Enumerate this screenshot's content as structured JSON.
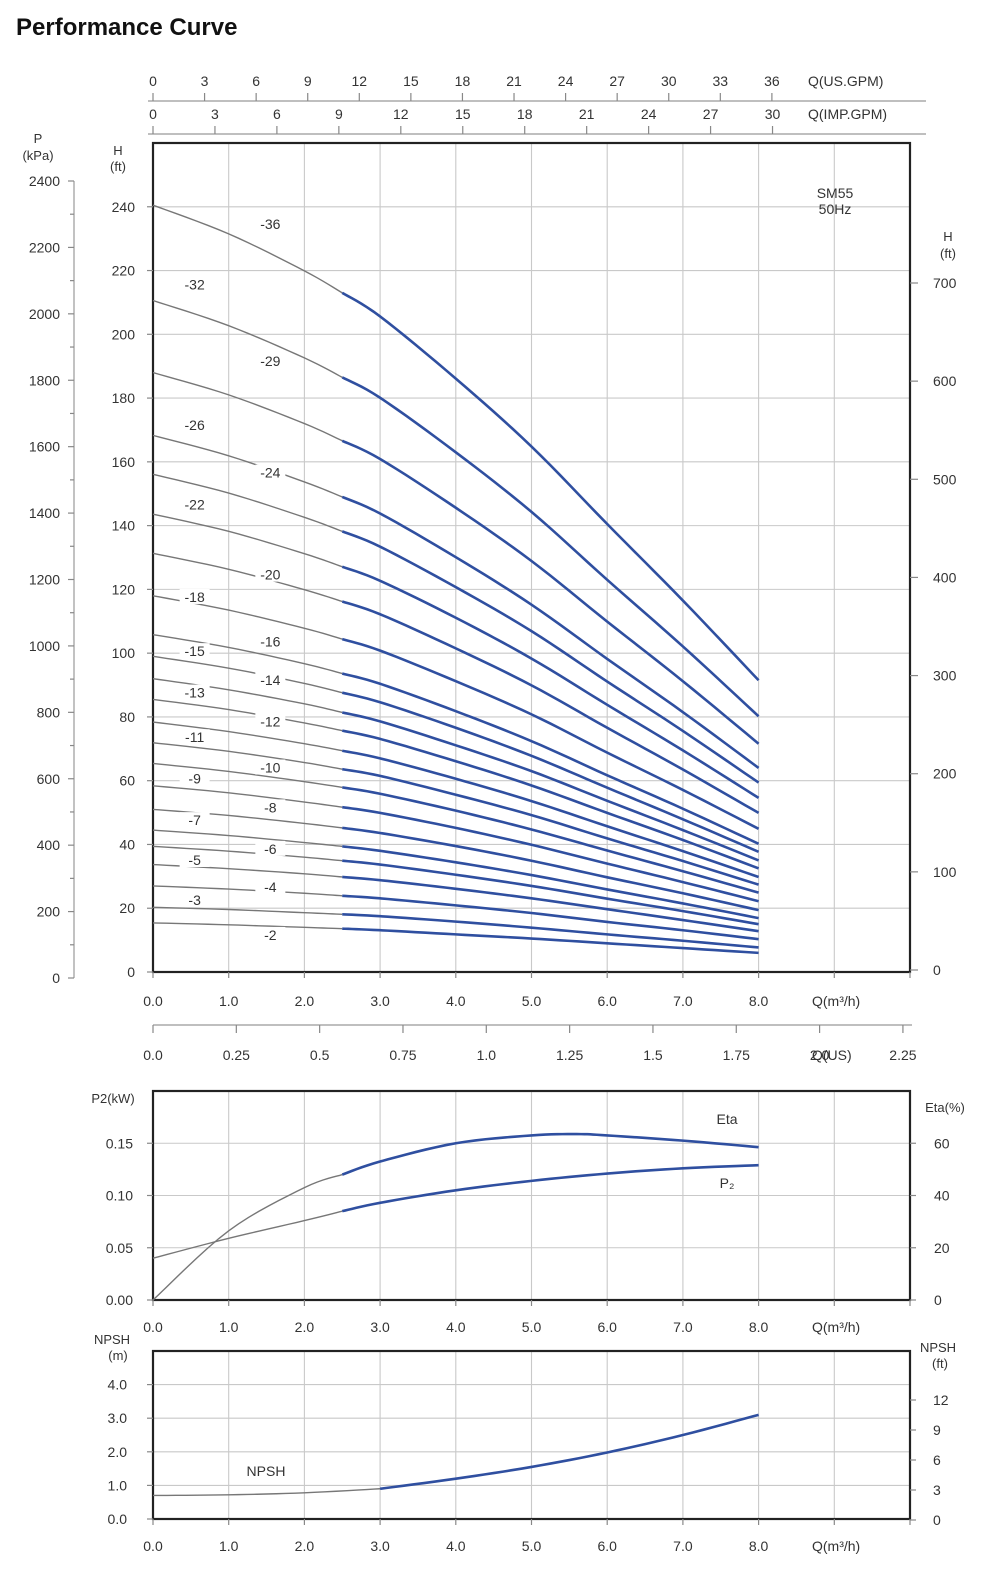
{
  "page_title": "Performance Curve",
  "chart_data": [
    {
      "type": "line",
      "name": "head",
      "annotation": [
        "SM55",
        "50Hz"
      ],
      "x_label": "Q(m³/h)",
      "x_ticks": [
        "0.0",
        "1.0",
        "2.0",
        "3.0",
        "4.0",
        "5.0",
        "6.0",
        "7.0",
        "8.0"
      ],
      "xlim": [
        0,
        10
      ],
      "ylim": [
        0,
        260
      ],
      "y_label_left_unit": [
        "H",
        "(ft)"
      ],
      "y_ticks_left": [
        "0",
        "20",
        "40",
        "60",
        "80",
        "100",
        "120",
        "140",
        "160",
        "180",
        "200",
        "220",
        "240"
      ],
      "pressure_label": [
        "P",
        "(kPa)"
      ],
      "pressure_ticks": [
        "0",
        "200",
        "400",
        "600",
        "800",
        "1000",
        "1200",
        "1400",
        "1600",
        "1800",
        "2000",
        "2200",
        "2400"
      ],
      "right_label": [
        "H",
        "(ft)"
      ],
      "right_ticks": [
        "0",
        "100",
        "200",
        "300",
        "400",
        "500",
        "600",
        "700"
      ],
      "top_axis_us": {
        "label": "Q(US.GPM)",
        "ticks": [
          "0",
          "3",
          "6",
          "9",
          "12",
          "15",
          "18",
          "21",
          "24",
          "27",
          "30",
          "33",
          "36"
        ]
      },
      "top_axis_imp": {
        "label": "Q(IMP.GPM)",
        "ticks": [
          "0",
          "3",
          "6",
          "9",
          "12",
          "15",
          "18",
          "21",
          "24",
          "27",
          "30"
        ]
      },
      "bottom_axis_us": {
        "label": "Q(US)",
        "ticks": [
          "0.0",
          "0.25",
          "0.5",
          "0.75",
          "1.0",
          "1.25",
          "1.5",
          "1.75",
          "2.0",
          "2.25"
        ]
      },
      "series_x": [
        0,
        1,
        2,
        2.5,
        3,
        4,
        5,
        6,
        7,
        8
      ],
      "series": [
        {
          "name": "-2",
          "values": [
            15.4,
            14.8,
            14.0,
            13.6,
            13.1,
            11.8,
            10.5,
            9.0,
            7.5,
            6.0
          ]
        },
        {
          "name": "-3",
          "values": [
            20.3,
            19.6,
            18.6,
            18.1,
            17.5,
            15.8,
            13.9,
            11.8,
            9.8,
            7.7
          ]
        },
        {
          "name": "-4",
          "values": [
            27.0,
            26.0,
            24.7,
            23.9,
            23.1,
            20.9,
            18.5,
            15.7,
            13.1,
            10.3
          ]
        },
        {
          "name": "-5",
          "values": [
            33.7,
            32.4,
            30.8,
            29.8,
            28.8,
            26.1,
            23.1,
            19.7,
            16.3,
            12.8
          ]
        },
        {
          "name": "-6",
          "values": [
            39.4,
            37.9,
            36.0,
            34.9,
            33.7,
            30.5,
            27.0,
            23.0,
            19.1,
            15.0
          ]
        },
        {
          "name": "-7",
          "values": [
            44.5,
            42.8,
            40.6,
            39.4,
            38.0,
            34.4,
            30.4,
            25.9,
            21.5,
            16.9
          ]
        },
        {
          "name": "-8",
          "values": [
            51.0,
            49.1,
            46.6,
            45.2,
            43.6,
            39.5,
            34.9,
            29.7,
            24.7,
            19.4
          ]
        },
        {
          "name": "-9",
          "values": [
            58.4,
            56.2,
            53.3,
            51.7,
            49.9,
            45.2,
            39.9,
            34.0,
            28.2,
            22.2
          ]
        },
        {
          "name": "-10",
          "values": [
            65.4,
            62.9,
            59.7,
            57.9,
            55.9,
            50.6,
            44.7,
            38.1,
            31.6,
            24.9
          ]
        },
        {
          "name": "-11",
          "values": [
            71.9,
            69.2,
            65.7,
            63.6,
            61.5,
            55.6,
            49.2,
            41.9,
            34.8,
            27.4
          ]
        },
        {
          "name": "-12",
          "values": [
            78.4,
            75.4,
            71.6,
            69.4,
            67.0,
            60.6,
            53.6,
            45.7,
            37.9,
            29.8
          ]
        },
        {
          "name": "-13",
          "values": [
            85.5,
            82.3,
            78.1,
            75.7,
            73.1,
            66.1,
            58.5,
            49.9,
            41.4,
            32.5
          ]
        },
        {
          "name": "-14",
          "values": [
            92.0,
            88.5,
            84.1,
            81.4,
            78.6,
            71.1,
            63.0,
            53.7,
            44.5,
            35.0
          ]
        },
        {
          "name": "-15",
          "values": [
            99.0,
            95.3,
            90.5,
            87.6,
            84.6,
            76.6,
            67.8,
            57.8,
            47.9,
            37.7
          ]
        },
        {
          "name": "-16",
          "values": [
            105.8,
            101.8,
            96.7,
            93.6,
            90.4,
            81.8,
            72.4,
            61.7,
            51.2,
            40.2
          ]
        },
        {
          "name": "-18",
          "values": [
            118.0,
            113.5,
            107.8,
            104.4,
            100.8,
            91.2,
            80.8,
            68.8,
            57.1,
            44.9
          ]
        },
        {
          "name": "-20",
          "values": [
            131.3,
            126.3,
            119.9,
            116.2,
            112.2,
            101.5,
            89.9,
            76.6,
            63.5,
            49.9
          ]
        },
        {
          "name": "-22",
          "values": [
            143.6,
            138.2,
            131.2,
            127.1,
            122.7,
            111.1,
            98.3,
            83.8,
            69.5,
            54.6
          ]
        },
        {
          "name": "-24",
          "values": [
            156.1,
            150.2,
            142.6,
            138.2,
            133.4,
            120.7,
            106.9,
            91.1,
            75.6,
            59.4
          ]
        },
        {
          "name": "-26",
          "values": [
            168.3,
            161.9,
            153.7,
            149.0,
            143.8,
            130.1,
            115.2,
            98.2,
            81.5,
            64.0
          ]
        },
        {
          "name": "-29",
          "values": [
            188.0,
            181.0,
            172.0,
            166.6,
            160.9,
            145.6,
            128.9,
            109.9,
            91.2,
            71.6
          ]
        },
        {
          "name": "-32",
          "values": [
            210.6,
            202.7,
            192.6,
            186.5,
            180.1,
            163.0,
            144.3,
            123.0,
            102.1,
            80.2
          ]
        },
        {
          "name": "-36",
          "values": [
            240.5,
            231.5,
            219.9,
            213.0,
            205.6,
            186.1,
            164.8,
            140.5,
            116.5,
            91.5
          ]
        }
      ],
      "curve_labels": [
        {
          "name": "-36",
          "at": [
            1.55,
            234
          ]
        },
        {
          "name": "-32",
          "at": [
            0.55,
            215
          ]
        },
        {
          "name": "-29",
          "at": [
            1.55,
            191
          ]
        },
        {
          "name": "-26",
          "at": [
            0.55,
            171
          ]
        },
        {
          "name": "-24",
          "at": [
            1.55,
            156
          ]
        },
        {
          "name": "-22",
          "at": [
            0.55,
            146
          ]
        },
        {
          "name": "-20",
          "at": [
            1.55,
            124
          ]
        },
        {
          "name": "-18",
          "at": [
            0.55,
            117
          ]
        },
        {
          "name": "-16",
          "at": [
            1.55,
            103
          ]
        },
        {
          "name": "-15",
          "at": [
            0.55,
            100
          ]
        },
        {
          "name": "-14",
          "at": [
            1.55,
            91
          ]
        },
        {
          "name": "-13",
          "at": [
            0.55,
            87
          ]
        },
        {
          "name": "-12",
          "at": [
            1.55,
            78
          ]
        },
        {
          "name": "-11",
          "at": [
            0.55,
            73
          ]
        },
        {
          "name": "-10",
          "at": [
            1.55,
            63.5
          ]
        },
        {
          "name": "-9",
          "at": [
            0.55,
            60
          ]
        },
        {
          "name": "-8",
          "at": [
            1.55,
            51
          ]
        },
        {
          "name": "-7",
          "at": [
            0.55,
            47
          ]
        },
        {
          "name": "-6",
          "at": [
            1.55,
            38
          ]
        },
        {
          "name": "-5",
          "at": [
            0.55,
            34.5
          ]
        },
        {
          "name": "-4",
          "at": [
            1.55,
            26
          ]
        },
        {
          "name": "-3",
          "at": [
            0.55,
            22
          ]
        },
        {
          "name": "-2",
          "at": [
            1.55,
            11
          ]
        }
      ]
    },
    {
      "type": "line",
      "name": "power-efficiency",
      "x_label": "Q(m³/h)",
      "x_ticks": [
        "0.0",
        "1.0",
        "2.0",
        "3.0",
        "4.0",
        "5.0",
        "6.0",
        "7.0",
        "8.0"
      ],
      "xlim": [
        0,
        10
      ],
      "y_label_left": "P2(kW)",
      "y_ticks_left": [
        "0.00",
        "0.05",
        "0.10",
        "0.15"
      ],
      "ylim_left": [
        0,
        0.2
      ],
      "y_label_right": "Eta(%)",
      "y_ticks_right": [
        "0",
        "20",
        "40",
        "60"
      ],
      "ylim_right": [
        0,
        80
      ],
      "series": [
        {
          "name": "Eta",
          "axis": "right",
          "x": [
            0,
            1,
            2,
            2.5,
            3,
            4,
            5,
            5.6,
            6,
            7,
            8
          ],
          "values": [
            0,
            26.5,
            43,
            48,
            53,
            60,
            63,
            63.5,
            63,
            61,
            58.5
          ]
        },
        {
          "name": "P₂",
          "axis": "left",
          "x": [
            0,
            1,
            2,
            2.5,
            3,
            4,
            5,
            6,
            7,
            8
          ],
          "values": [
            0.04,
            0.059,
            0.076,
            0.085,
            0.093,
            0.105,
            0.114,
            0.121,
            0.126,
            0.129
          ]
        }
      ]
    },
    {
      "type": "line",
      "name": "npsh",
      "x_label": "Q(m³/h)",
      "x_ticks": [
        "0.0",
        "1.0",
        "2.0",
        "3.0",
        "4.0",
        "5.0",
        "6.0",
        "7.0",
        "8.0"
      ],
      "xlim": [
        0,
        10
      ],
      "y_label_left": [
        "NPSH",
        "(m)"
      ],
      "y_ticks_left": [
        "0.0",
        "1.0",
        "2.0",
        "3.0",
        "4.0"
      ],
      "ylim_left": [
        0,
        5
      ],
      "y_label_right": [
        "NPSH",
        "(ft)"
      ],
      "y_ticks_right": [
        "0",
        "3",
        "6",
        "9",
        "12"
      ],
      "series": [
        {
          "name": "NPSH",
          "x": [
            0,
            1,
            2,
            3,
            4,
            5,
            6,
            7,
            8
          ],
          "values": [
            0.7,
            0.72,
            0.78,
            0.9,
            1.2,
            1.55,
            1.98,
            2.5,
            3.1
          ]
        }
      ]
    }
  ]
}
